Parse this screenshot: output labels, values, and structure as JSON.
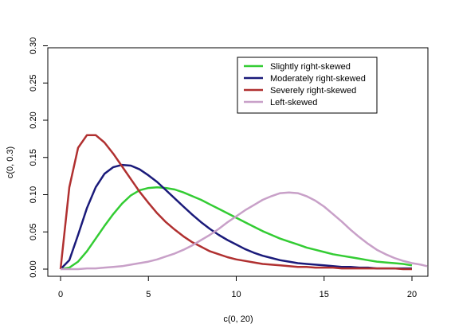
{
  "chart_data": {
    "type": "line",
    "xlabel": "c(0, 20)",
    "ylabel": "c(0, 0.3)",
    "xlim": [
      0,
      20
    ],
    "ylim": [
      0,
      0.3
    ],
    "x_ticks": [
      0,
      5,
      10,
      15,
      20
    ],
    "x_tick_labels": [
      "0",
      "5",
      "10",
      "15",
      "20"
    ],
    "y_ticks": [
      0.0,
      0.05,
      0.1,
      0.15,
      0.2,
      0.25,
      0.3
    ],
    "y_tick_labels": [
      "0.00",
      "0.05",
      "0.10",
      "0.15",
      "0.20",
      "0.25",
      "0.30"
    ],
    "grid": false,
    "legend_position": "top-right",
    "x": [
      0,
      0.5,
      1,
      1.5,
      2,
      2.5,
      3,
      3.5,
      4,
      4.5,
      5,
      5.5,
      6,
      6.5,
      7,
      7.5,
      8,
      8.5,
      9,
      9.5,
      10,
      10.5,
      11,
      11.5,
      12,
      12.5,
      13,
      13.5,
      14,
      14.5,
      15,
      15.5,
      16,
      16.5,
      17,
      17.5,
      18,
      18.5,
      19,
      19.5,
      20,
      20.5,
      21
    ],
    "series": [
      {
        "name": "Slightly right-skewed",
        "color": "#33cc33",
        "x_max": 20,
        "values": [
          0,
          0.002,
          0.01,
          0.024,
          0.041,
          0.058,
          0.074,
          0.088,
          0.099,
          0.106,
          0.109,
          0.11,
          0.109,
          0.107,
          0.103,
          0.098,
          0.093,
          0.087,
          0.081,
          0.075,
          0.069,
          0.063,
          0.057,
          0.051,
          0.046,
          0.041,
          0.037,
          0.033,
          0.029,
          0.026,
          0.023,
          0.02,
          0.018,
          0.016,
          0.014,
          0.012,
          0.01,
          0.009,
          0.008,
          0.007,
          0.005,
          null,
          null
        ]
      },
      {
        "name": "Moderately right-skewed",
        "color": "#1a1a7a",
        "x_max": 20,
        "values": [
          0,
          0.012,
          0.046,
          0.082,
          0.11,
          0.128,
          0.137,
          0.14,
          0.139,
          0.134,
          0.126,
          0.117,
          0.106,
          0.095,
          0.084,
          0.073,
          0.063,
          0.054,
          0.046,
          0.039,
          0.033,
          0.027,
          0.022,
          0.018,
          0.015,
          0.012,
          0.01,
          0.008,
          0.007,
          0.006,
          0.005,
          0.004,
          0.003,
          0.003,
          0.002,
          0.002,
          0.001,
          0.001,
          0.001,
          0.001,
          0.001,
          null,
          null
        ]
      },
      {
        "name": "Severely right-skewed",
        "color": "#b03030",
        "x_max": 20,
        "values": [
          0,
          0.11,
          0.163,
          0.18,
          0.18,
          0.17,
          0.155,
          0.138,
          0.121,
          0.104,
          0.089,
          0.075,
          0.063,
          0.053,
          0.044,
          0.036,
          0.03,
          0.024,
          0.02,
          0.016,
          0.013,
          0.011,
          0.009,
          0.007,
          0.006,
          0.005,
          0.004,
          0.003,
          0.003,
          0.002,
          0.002,
          0.002,
          0.001,
          0.001,
          0.001,
          0.001,
          0.001,
          0.001,
          0.001,
          0.0,
          0.0,
          null,
          null
        ]
      },
      {
        "name": "Left-skewed",
        "color": "#c8a0c8",
        "x_max": 21,
        "values": [
          0,
          0.0,
          0.0,
          0.001,
          0.001,
          0.002,
          0.003,
          0.004,
          0.006,
          0.008,
          0.01,
          0.013,
          0.017,
          0.021,
          0.026,
          0.032,
          0.039,
          0.046,
          0.054,
          0.063,
          0.071,
          0.079,
          0.086,
          0.093,
          0.098,
          0.102,
          0.103,
          0.102,
          0.098,
          0.092,
          0.084,
          0.074,
          0.064,
          0.053,
          0.043,
          0.034,
          0.026,
          0.02,
          0.015,
          0.011,
          0.008,
          0.006,
          0.004
        ]
      }
    ]
  }
}
